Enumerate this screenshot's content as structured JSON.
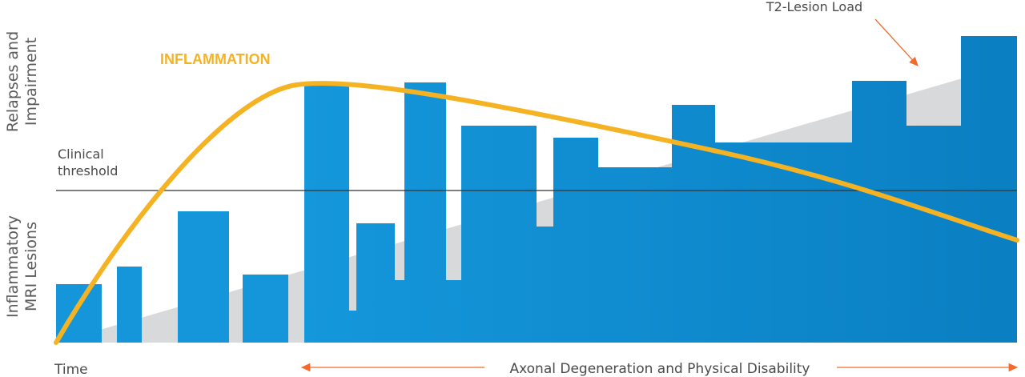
{
  "y_axis": {
    "upper_line1": "Relapses and",
    "upper_line2": "Impairment",
    "lower_line1": "Inflammatory",
    "lower_line2": "MRI Lesions"
  },
  "clinical_threshold": {
    "line1": "Clinical",
    "line2": "threshold"
  },
  "inflammation_label": "INFLAMMATION",
  "t2_label": "T2-Lesion Load",
  "x_axis": {
    "time_label": "Time",
    "degeneration_label": "Axonal Degeneration and Physical Disability"
  },
  "colors": {
    "bars": "#0a86cc",
    "bars_light": "#1596da",
    "curve": "#f5b323",
    "t2_load": "#d8d9db",
    "arrow": "#f26b2a",
    "threshold": "#333333",
    "inflammation_text": "#f5b323"
  }
}
